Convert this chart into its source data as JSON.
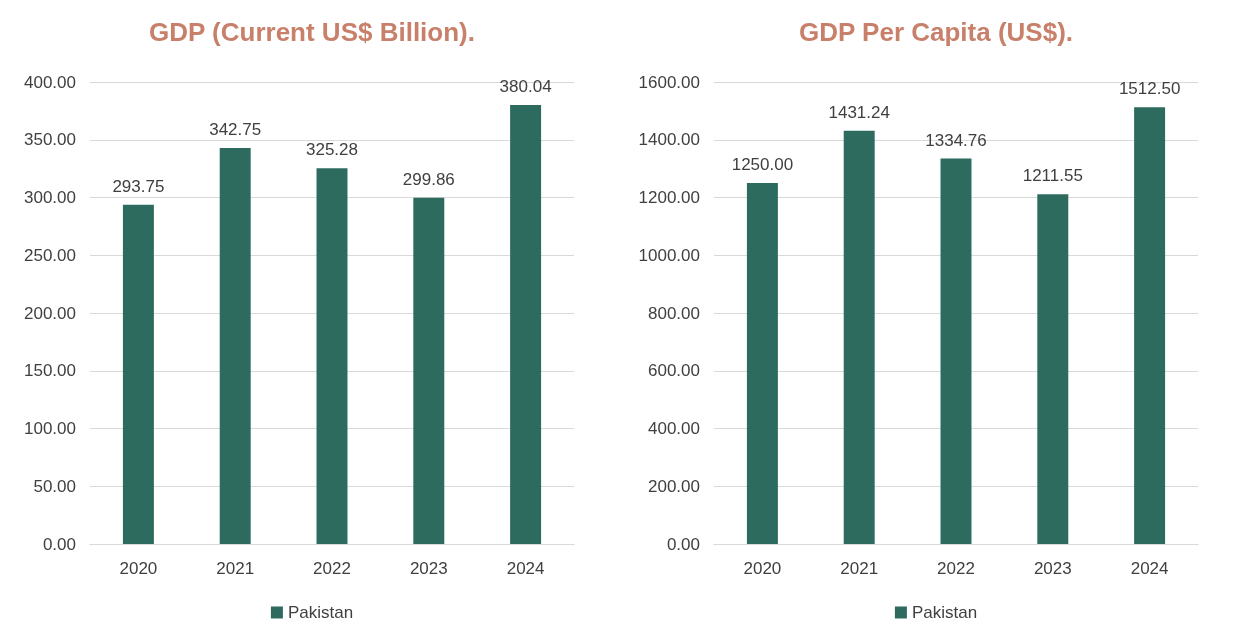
{
  "chart_data": [
    {
      "type": "bar",
      "title": "GDP (Current US$ Billion).",
      "categories": [
        "2020",
        "2021",
        "2022",
        "2023",
        "2024"
      ],
      "series": [
        {
          "name": "Pakistan",
          "color": "#2e6b5f",
          "values": [
            293.75,
            342.75,
            325.28,
            299.86,
            380.04
          ],
          "value_labels": [
            "293.75",
            "342.75",
            "325.28",
            "299.86",
            "380.04"
          ]
        }
      ],
      "ylim": [
        0,
        400
      ],
      "yticks": [
        {
          "value": 0,
          "label": "0.00"
        },
        {
          "value": 50,
          "label": "50.00"
        },
        {
          "value": 100,
          "label": "100.00"
        },
        {
          "value": 150,
          "label": "150.00"
        },
        {
          "value": 200,
          "label": "200.00"
        },
        {
          "value": 250,
          "label": "250.00"
        },
        {
          "value": 300,
          "label": "300.00"
        },
        {
          "value": 350,
          "label": "350.00"
        },
        {
          "value": 400,
          "label": "400.00"
        }
      ],
      "grid": "y",
      "legend": "bottom"
    },
    {
      "type": "bar",
      "title": "GDP Per Capita (US$).",
      "categories": [
        "2020",
        "2021",
        "2022",
        "2023",
        "2024"
      ],
      "series": [
        {
          "name": "Pakistan",
          "color": "#2e6b5f",
          "values": [
            1250.0,
            1431.24,
            1334.76,
            1211.55,
            1512.5
          ],
          "value_labels": [
            "1250.00",
            "1431.24",
            "1334.76",
            "1211.55",
            "1512.50"
          ]
        }
      ],
      "ylim": [
        0,
        1600
      ],
      "yticks": [
        {
          "value": 0,
          "label": "0.00"
        },
        {
          "value": 200,
          "label": "200.00"
        },
        {
          "value": 400,
          "label": "400.00"
        },
        {
          "value": 600,
          "label": "600.00"
        },
        {
          "value": 800,
          "label": "800.00"
        },
        {
          "value": 1000,
          "label": "1000.00"
        },
        {
          "value": 1200,
          "label": "1200.00"
        },
        {
          "value": 1400,
          "label": "1400.00"
        },
        {
          "value": 1600,
          "label": "1600.00"
        }
      ],
      "grid": "y",
      "legend": "bottom"
    }
  ]
}
